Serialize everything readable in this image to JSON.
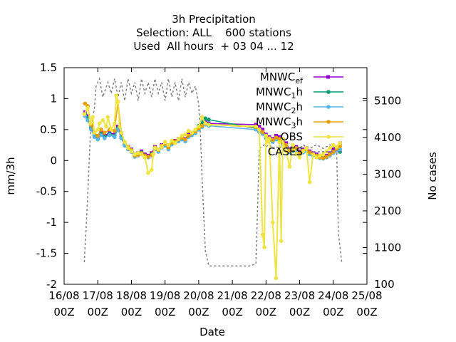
{
  "chart_data": {
    "type": "line",
    "title_lines": [
      "3h Precipitation",
      "Selection: ALL    600 stations",
      "Used  All hours  + 03 04 ... 12"
    ],
    "xlabel": "Date",
    "ylabel": "mm/3h",
    "y2label": "No cases",
    "x_ticks": [
      {
        "l1": "16/08",
        "l2": "00Z"
      },
      {
        "l1": "17/08",
        "l2": "00Z"
      },
      {
        "l1": "18/08",
        "l2": "00Z"
      },
      {
        "l1": "19/08",
        "l2": "00Z"
      },
      {
        "l1": "20/08",
        "l2": "00Z"
      },
      {
        "l1": "21/08",
        "l2": "00Z"
      },
      {
        "l1": "22/08",
        "l2": "00Z"
      },
      {
        "l1": "23/08",
        "l2": "00Z"
      },
      {
        "l1": "24/08",
        "l2": "00Z"
      },
      {
        "l1": "25/08",
        "l2": "00Z"
      }
    ],
    "xlim": [
      0,
      9
    ],
    "ylim": [
      -2,
      1.5
    ],
    "y_ticks": [
      "1.5",
      "1",
      "0.5",
      "0",
      "-0.5",
      "-1",
      "-1.5",
      "-2"
    ],
    "y2lim": [
      100,
      6000
    ],
    "y2_ticks": [
      "5100",
      "4100",
      "3100",
      "2100",
      "1100",
      "100"
    ],
    "grid": false,
    "legend_position": "top-right",
    "series": [
      {
        "name": "MNWC_ef",
        "label_main": "MNWC",
        "label_sub": "ef",
        "label_tail": "",
        "color": "#9400d3",
        "marker": "square",
        "x": [
          0.62,
          0.7,
          0.8,
          0.9,
          1.0,
          1.1,
          1.2,
          1.35,
          1.5,
          1.6,
          1.7,
          1.8,
          1.9,
          2.0,
          2.1,
          2.2,
          2.3,
          2.4,
          2.5,
          2.6,
          2.7,
          2.8,
          2.9,
          3.0,
          3.1,
          3.2,
          3.3,
          3.4,
          3.5,
          3.6,
          3.7,
          3.8,
          3.9,
          4.0,
          4.1,
          4.2,
          4.3,
          5.7,
          5.8,
          5.9,
          6.0,
          6.1,
          6.2,
          6.3,
          6.4,
          6.5,
          6.6,
          6.7,
          6.8,
          6.9,
          7.0,
          7.1,
          7.2,
          7.3,
          7.4,
          7.5,
          7.6,
          7.7,
          7.8,
          7.9,
          8.0,
          8.1,
          8.2
        ],
        "y": [
          0.78,
          0.72,
          0.55,
          0.42,
          0.38,
          0.45,
          0.4,
          0.45,
          0.42,
          0.55,
          0.4,
          0.28,
          0.22,
          0.18,
          0.1,
          0.12,
          0.15,
          0.1,
          0.08,
          0.12,
          0.22,
          0.18,
          0.25,
          0.28,
          0.22,
          0.3,
          0.32,
          0.35,
          0.38,
          0.35,
          0.42,
          0.45,
          0.48,
          0.52,
          0.55,
          0.62,
          0.6,
          0.58,
          0.55,
          0.5,
          0.42,
          0.38,
          0.35,
          0.4,
          0.38,
          0.32,
          0.28,
          0.18,
          0.2,
          0.22,
          0.15,
          0.18,
          0.2,
          0.15,
          0.12,
          0.1,
          0.08,
          0.05,
          0.08,
          0.12,
          0.18,
          0.22,
          0.28
        ]
      },
      {
        "name": "MNWC_1h",
        "label_main": "MNWC",
        "label_sub": "1",
        "label_tail": "h",
        "color": "#009e73",
        "marker": "circle",
        "x": [
          0.62,
          0.7,
          0.8,
          0.9,
          1.0,
          1.1,
          1.2,
          1.35,
          1.5,
          1.6,
          1.7,
          1.8,
          1.9,
          2.0,
          2.1,
          2.2,
          2.3,
          2.4,
          2.5,
          2.6,
          2.7,
          2.8,
          2.9,
          3.0,
          3.1,
          3.2,
          3.3,
          3.4,
          3.5,
          3.6,
          3.7,
          3.8,
          3.9,
          4.0,
          4.1,
          4.2,
          4.3,
          5.7,
          5.8,
          5.9,
          6.0,
          6.1,
          6.2,
          6.3,
          6.4,
          6.5,
          6.6,
          6.7,
          6.8,
          6.9,
          7.0,
          7.1,
          7.2,
          7.3,
          7.4,
          7.5,
          7.6,
          7.7,
          7.8,
          7.9,
          8.0,
          8.1,
          8.2
        ],
        "y": [
          0.75,
          0.68,
          0.52,
          0.4,
          0.36,
          0.43,
          0.38,
          0.43,
          0.4,
          0.52,
          0.38,
          0.26,
          0.2,
          0.16,
          0.08,
          0.1,
          0.13,
          0.08,
          0.06,
          0.1,
          0.2,
          0.16,
          0.23,
          0.26,
          0.2,
          0.28,
          0.3,
          0.33,
          0.36,
          0.33,
          0.4,
          0.43,
          0.46,
          0.56,
          0.62,
          0.68,
          0.66,
          0.52,
          0.48,
          0.45,
          0.38,
          0.35,
          0.32,
          0.36,
          0.34,
          0.28,
          0.24,
          0.15,
          0.17,
          0.19,
          0.12,
          0.15,
          0.17,
          0.12,
          0.1,
          0.08,
          0.06,
          0.04,
          0.06,
          0.1,
          0.14,
          0.18,
          0.14
        ]
      },
      {
        "name": "MNWC_2h",
        "label_main": "MNWC",
        "label_sub": "2",
        "label_tail": "h",
        "color": "#56b4e9",
        "marker": "circle",
        "x": [
          0.62,
          0.7,
          0.8,
          0.9,
          1.0,
          1.1,
          1.2,
          1.35,
          1.5,
          1.6,
          1.7,
          1.8,
          1.9,
          2.0,
          2.1,
          2.2,
          2.3,
          2.4,
          2.5,
          2.6,
          2.7,
          2.8,
          2.9,
          3.0,
          3.1,
          3.2,
          3.3,
          3.4,
          3.5,
          3.6,
          3.7,
          3.8,
          3.9,
          4.0,
          4.1,
          4.2,
          4.3,
          5.7,
          5.8,
          5.9,
          6.0,
          6.1,
          6.2,
          6.3,
          6.4,
          6.5,
          6.6,
          6.7,
          6.8,
          6.9,
          7.0,
          7.1,
          7.2,
          7.3,
          7.4,
          7.5,
          7.6,
          7.7,
          7.8,
          7.9,
          8.0,
          8.1,
          8.2
        ],
        "y": [
          0.72,
          0.65,
          0.5,
          0.38,
          0.34,
          0.41,
          0.36,
          0.41,
          0.38,
          0.5,
          0.36,
          0.24,
          0.18,
          0.14,
          0.06,
          0.08,
          0.11,
          0.06,
          0.05,
          0.08,
          0.18,
          0.14,
          0.21,
          0.24,
          0.18,
          0.26,
          0.28,
          0.31,
          0.34,
          0.31,
          0.38,
          0.41,
          0.44,
          0.5,
          0.54,
          0.58,
          0.56,
          0.5,
          0.46,
          0.43,
          0.36,
          0.33,
          0.3,
          0.34,
          0.32,
          0.26,
          0.22,
          0.13,
          0.15,
          0.17,
          0.1,
          0.13,
          0.15,
          0.1,
          0.08,
          0.06,
          0.04,
          0.03,
          0.05,
          0.08,
          0.12,
          0.16,
          0.18
        ]
      },
      {
        "name": "MNWC_3h",
        "label_main": "MNWC",
        "label_sub": "3",
        "label_tail": "h",
        "color": "#e69f00",
        "marker": "circle",
        "x": [
          0.62,
          0.7,
          0.8,
          0.9,
          1.0,
          1.1,
          1.2,
          1.35,
          1.5,
          1.6,
          1.7,
          1.8,
          1.9,
          2.0,
          2.1,
          2.2,
          2.3,
          2.4,
          2.5,
          2.6,
          2.7,
          2.8,
          2.9,
          3.0,
          3.1,
          3.2,
          3.3,
          3.4,
          3.5,
          3.6,
          3.7,
          3.8,
          3.9,
          4.0,
          4.1,
          4.2,
          4.3,
          5.7,
          5.8,
          5.9,
          6.0,
          6.1,
          6.2,
          6.3,
          6.4,
          6.5,
          6.6,
          6.7,
          6.8,
          6.9,
          7.0,
          7.1,
          7.2,
          7.3,
          7.4,
          7.5,
          7.6,
          7.7,
          7.8,
          7.9,
          8.0,
          8.1,
          8.2
        ],
        "y": [
          0.92,
          0.88,
          0.58,
          0.45,
          0.4,
          0.5,
          0.45,
          0.5,
          0.48,
          0.95,
          0.45,
          0.3,
          0.22,
          0.17,
          0.08,
          0.09,
          0.12,
          0.08,
          0.06,
          0.09,
          0.21,
          0.17,
          0.24,
          0.27,
          0.21,
          0.29,
          0.31,
          0.34,
          0.37,
          0.34,
          0.4,
          0.44,
          0.47,
          0.52,
          0.56,
          0.6,
          0.58,
          0.54,
          0.5,
          0.46,
          0.4,
          0.36,
          0.33,
          0.37,
          0.35,
          0.29,
          0.25,
          0.16,
          0.18,
          0.2,
          0.13,
          0.16,
          0.18,
          0.13,
          0.1,
          0.08,
          0.05,
          0.04,
          0.06,
          0.1,
          0.14,
          0.19,
          0.23
        ]
      },
      {
        "name": "OBS",
        "label_main": "OBS",
        "label_sub": "",
        "label_tail": "",
        "color": "#f0e442",
        "marker": "circle",
        "x": [
          0.6,
          0.7,
          0.78,
          0.85,
          0.9,
          1.0,
          1.05,
          1.15,
          1.25,
          1.3,
          1.4,
          1.5,
          1.55,
          1.6,
          1.65,
          1.7,
          1.8,
          1.9,
          2.0,
          2.1,
          2.2,
          2.3,
          2.4,
          2.5,
          2.6,
          2.65,
          2.7,
          2.8,
          2.9,
          3.0,
          3.1,
          3.2,
          3.3,
          3.4,
          3.5,
          3.6,
          3.7,
          3.8,
          3.9,
          4.0,
          4.1,
          4.2,
          4.3,
          5.7,
          5.8,
          5.9,
          5.95,
          6.0,
          6.05,
          6.1,
          6.2,
          6.3,
          6.4,
          6.45,
          6.5,
          6.55,
          6.6,
          6.7,
          6.8,
          6.9,
          7.0,
          7.1,
          7.2,
          7.3,
          7.4,
          7.5,
          7.6,
          7.7,
          7.8,
          7.9,
          8.0,
          8.1,
          8.2
        ],
        "y": [
          0.75,
          0.85,
          0.6,
          0.7,
          0.45,
          0.5,
          0.6,
          0.65,
          0.55,
          0.7,
          0.5,
          0.6,
          1.05,
          0.95,
          0.55,
          0.45,
          0.3,
          0.2,
          0.15,
          0.1,
          0.12,
          0.1,
          0.05,
          -0.2,
          -0.15,
          0.1,
          0.2,
          0.18,
          0.22,
          0.3,
          0.25,
          0.32,
          0.28,
          0.35,
          0.4,
          0.42,
          0.48,
          0.45,
          0.5,
          0.55,
          0.7,
          0.6,
          0.58,
          0.55,
          0.5,
          -1.2,
          -1.4,
          0.4,
          0.3,
          0.35,
          -1.0,
          -1.9,
          0.3,
          -1.3,
          0.35,
          0.2,
          0.15,
          -0.1,
          0.25,
          0.1,
          0.05,
          0.15,
          0.2,
          -0.35,
          0.1,
          0.05,
          0.08,
          0.1,
          0.15,
          0.2,
          0.25,
          0.22,
          0.28
        ]
      }
    ],
    "cases": {
      "name": "CASES",
      "color": "#808080",
      "x": [
        0.6,
        0.7,
        0.78,
        0.9,
        0.95,
        1.05,
        1.15,
        1.3,
        1.4,
        1.5,
        1.6,
        1.7,
        1.8,
        1.9,
        2.0,
        2.1,
        2.2,
        2.3,
        2.4,
        2.5,
        2.6,
        2.7,
        2.8,
        2.9,
        3.0,
        3.1,
        3.2,
        3.3,
        3.4,
        3.5,
        3.6,
        3.7,
        3.8,
        3.9,
        4.0,
        4.05,
        4.1,
        4.2,
        4.3,
        5.5,
        5.7,
        5.8,
        5.95,
        6.0,
        6.1,
        6.2,
        6.3,
        6.4,
        6.5,
        6.6,
        6.7,
        6.8,
        6.9,
        7.0,
        7.1,
        7.2,
        7.3,
        7.4,
        7.5,
        7.6,
        7.7,
        7.8,
        7.9,
        8.0,
        8.1,
        8.15,
        8.25
      ],
      "y": [
        700,
        2500,
        4200,
        4900,
        5500,
        5700,
        5200,
        5600,
        5300,
        5700,
        5200,
        5600,
        5100,
        5700,
        5300,
        5600,
        5100,
        5700,
        5300,
        5600,
        5200,
        5700,
        5300,
        5600,
        5100,
        5700,
        5200,
        5600,
        5100,
        5700,
        5200,
        5600,
        5300,
        5500,
        5000,
        4200,
        3000,
        1000,
        600,
        600,
        650,
        3800,
        3900,
        3850,
        3900,
        3800,
        3850,
        3800,
        3900,
        3850,
        3800,
        3900,
        3850,
        3800,
        3900,
        3850,
        3800,
        3850,
        3900,
        3850,
        3800,
        3850,
        3900,
        3850,
        3800,
        1500,
        700
      ]
    }
  }
}
